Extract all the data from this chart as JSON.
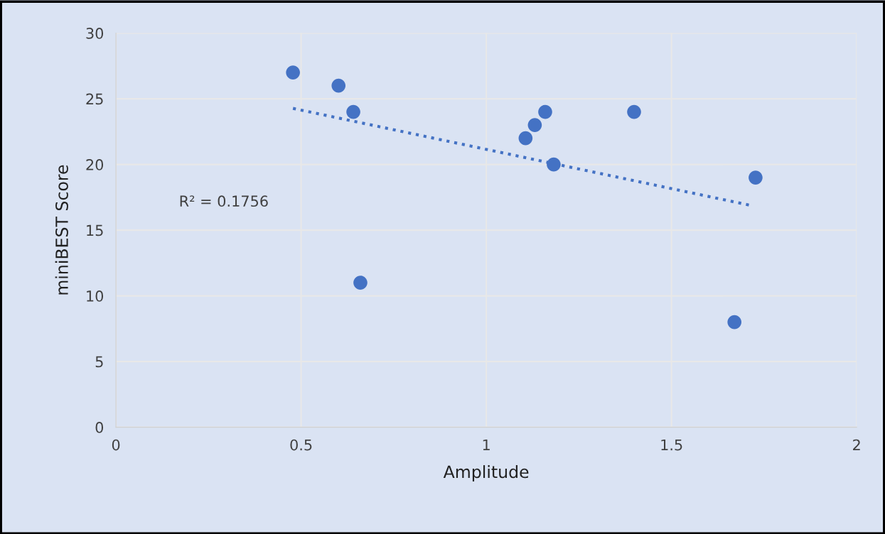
{
  "chart_data": {
    "type": "scatter",
    "xlabel": "Amplitude",
    "ylabel": "miniBEST Score",
    "x": [
      0.478,
      0.601,
      0.641,
      0.66,
      1.106,
      1.131,
      1.159,
      1.182,
      1.399,
      1.67,
      1.727
    ],
    "series": [
      {
        "color": "#4472c4",
        "values": [
          27,
          26,
          24,
          11,
          22,
          23,
          24,
          20,
          24,
          8,
          19
        ],
        "marker": "circle"
      },
      {
        "type": "line",
        "color": "#4472c4",
        "x": [
          0.478,
          1.718
        ],
        "values": [
          24.27,
          16.86
        ],
        "line_style": "dotted"
      }
    ],
    "annotations": [
      "R² = 0.1756"
    ],
    "xlim": [
      0,
      2
    ],
    "xticks": [
      0,
      0.5,
      1,
      1.5,
      2
    ],
    "ylim": [
      0,
      30
    ],
    "yticks": [
      0,
      5,
      10,
      15,
      20,
      25,
      30
    ],
    "grid": true,
    "legend": false
  }
}
